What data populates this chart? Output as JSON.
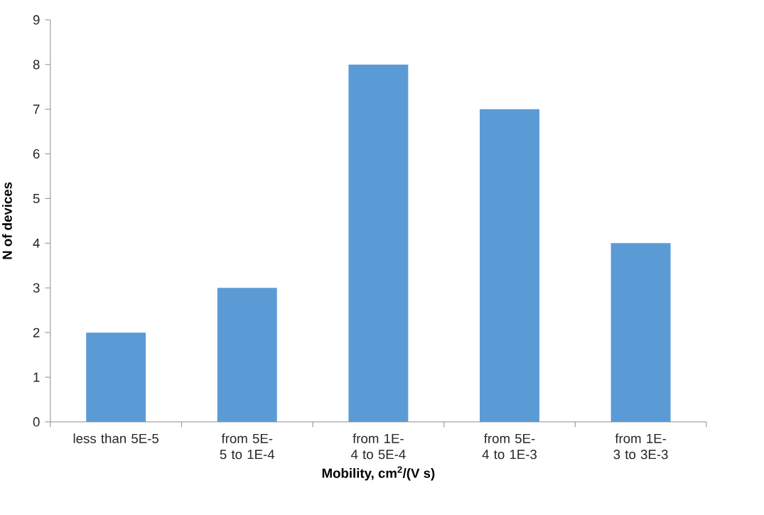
{
  "chart_data": {
    "type": "bar",
    "xlabel": "Mobility, cm$^{2}$/(V s)",
    "ylabel": "N of devices",
    "categories": [
      "less than  5E-5",
      "from 5E-5 to 1E-4",
      "from 1E-4 to 5E-4",
      "from 5E-4 to 1E-3",
      "from 1E-3 to 3E-3"
    ],
    "values": [
      2,
      3,
      8,
      7,
      4
    ],
    "color": "#5b9bd5",
    "ylim": [
      0,
      9
    ],
    "yticks": [
      0,
      1,
      2,
      3,
      4,
      5,
      6,
      7,
      8,
      9
    ],
    "grid": false
  }
}
